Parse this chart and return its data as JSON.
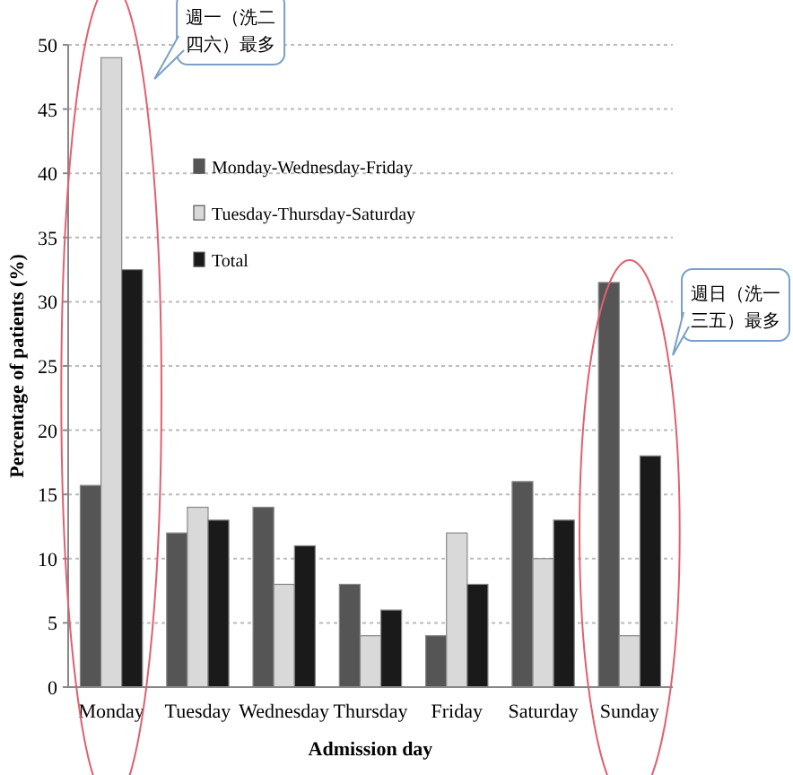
{
  "chart_data": {
    "type": "bar",
    "categories": [
      "Monday",
      "Tuesday",
      "Wednesday",
      "Thursday",
      "Friday",
      "Saturday",
      "Sunday"
    ],
    "series": [
      {
        "name": "Monday-Wednesday-Friday",
        "color": "#555555",
        "values": [
          15.7,
          12,
          14,
          8,
          4,
          16,
          31.5
        ]
      },
      {
        "name": "Tuesday-Thursday-Saturday",
        "color": "#d9d9d9",
        "values": [
          49,
          14,
          8,
          4,
          12,
          10,
          4
        ]
      },
      {
        "name": "Total",
        "color": "#1a1a1a",
        "values": [
          32.5,
          13,
          11,
          6,
          8,
          13,
          18
        ]
      }
    ],
    "ylim": [
      0,
      50
    ],
    "yticks": [
      0,
      5,
      10,
      15,
      20,
      25,
      30,
      35,
      40,
      45,
      50
    ],
    "ylabel": "Percentage of patients (%)",
    "xlabel": "Admission day",
    "grid": "y",
    "legend": "top left",
    "annotations": [
      "週一（洗二四六）最多",
      "週日（洗一三五）最多"
    ]
  }
}
